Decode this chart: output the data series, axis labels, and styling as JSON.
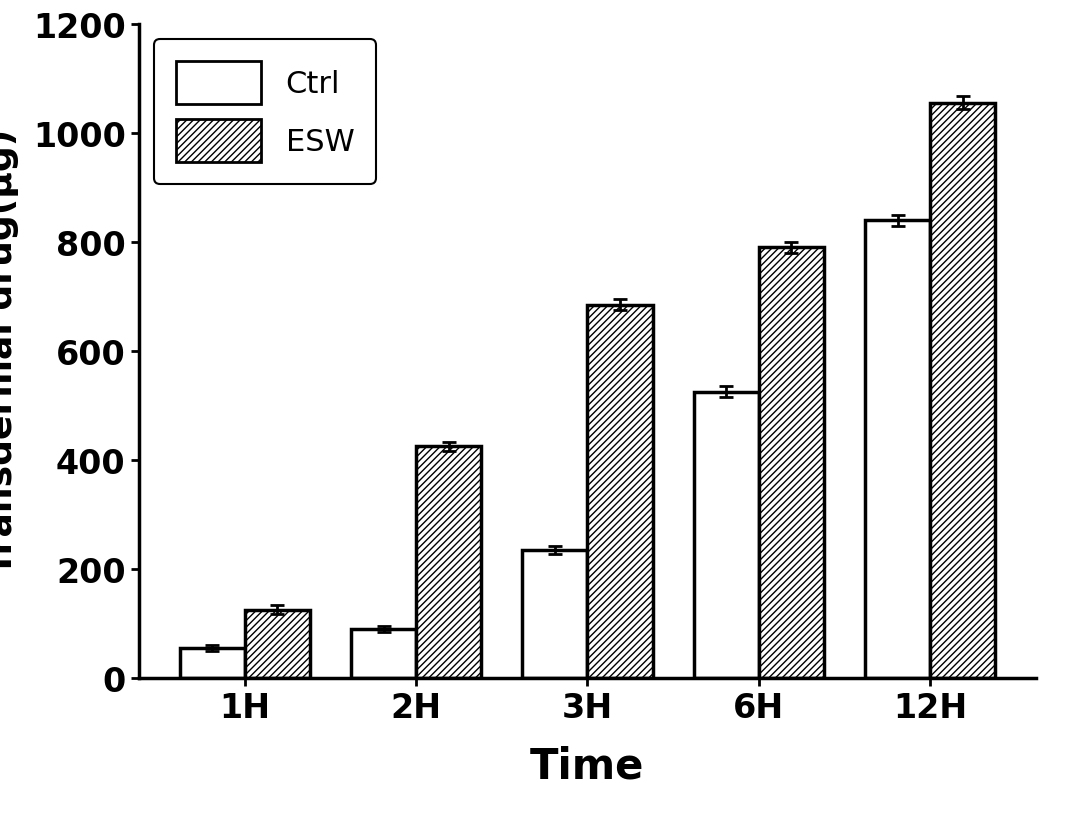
{
  "categories": [
    "1H",
    "2H",
    "3H",
    "6H",
    "12H"
  ],
  "ctrl_values": [
    55,
    90,
    235,
    525,
    840
  ],
  "esw_values": [
    125,
    425,
    685,
    790,
    1055
  ],
  "ctrl_errors": [
    5,
    5,
    8,
    10,
    10
  ],
  "esw_errors": [
    8,
    8,
    10,
    10,
    12
  ],
  "ylabel": "Transdermal drug(µg)",
  "xlabel": "Time",
  "ylim": [
    0,
    1200
  ],
  "yticks": [
    0,
    200,
    400,
    600,
    800,
    1000,
    1200
  ],
  "bar_width": 0.38,
  "ctrl_color": "#ffffff",
  "esw_color": "#ffffff",
  "ctrl_edgecolor": "#000000",
  "esw_edgecolor": "#000000",
  "legend_ctrl": "Ctrl",
  "legend_esw": "ESW",
  "label_fontsize": 26,
  "xlabel_fontsize": 30,
  "tick_fontsize": 24,
  "legend_fontsize": 22,
  "bar_linewidth": 2.5
}
